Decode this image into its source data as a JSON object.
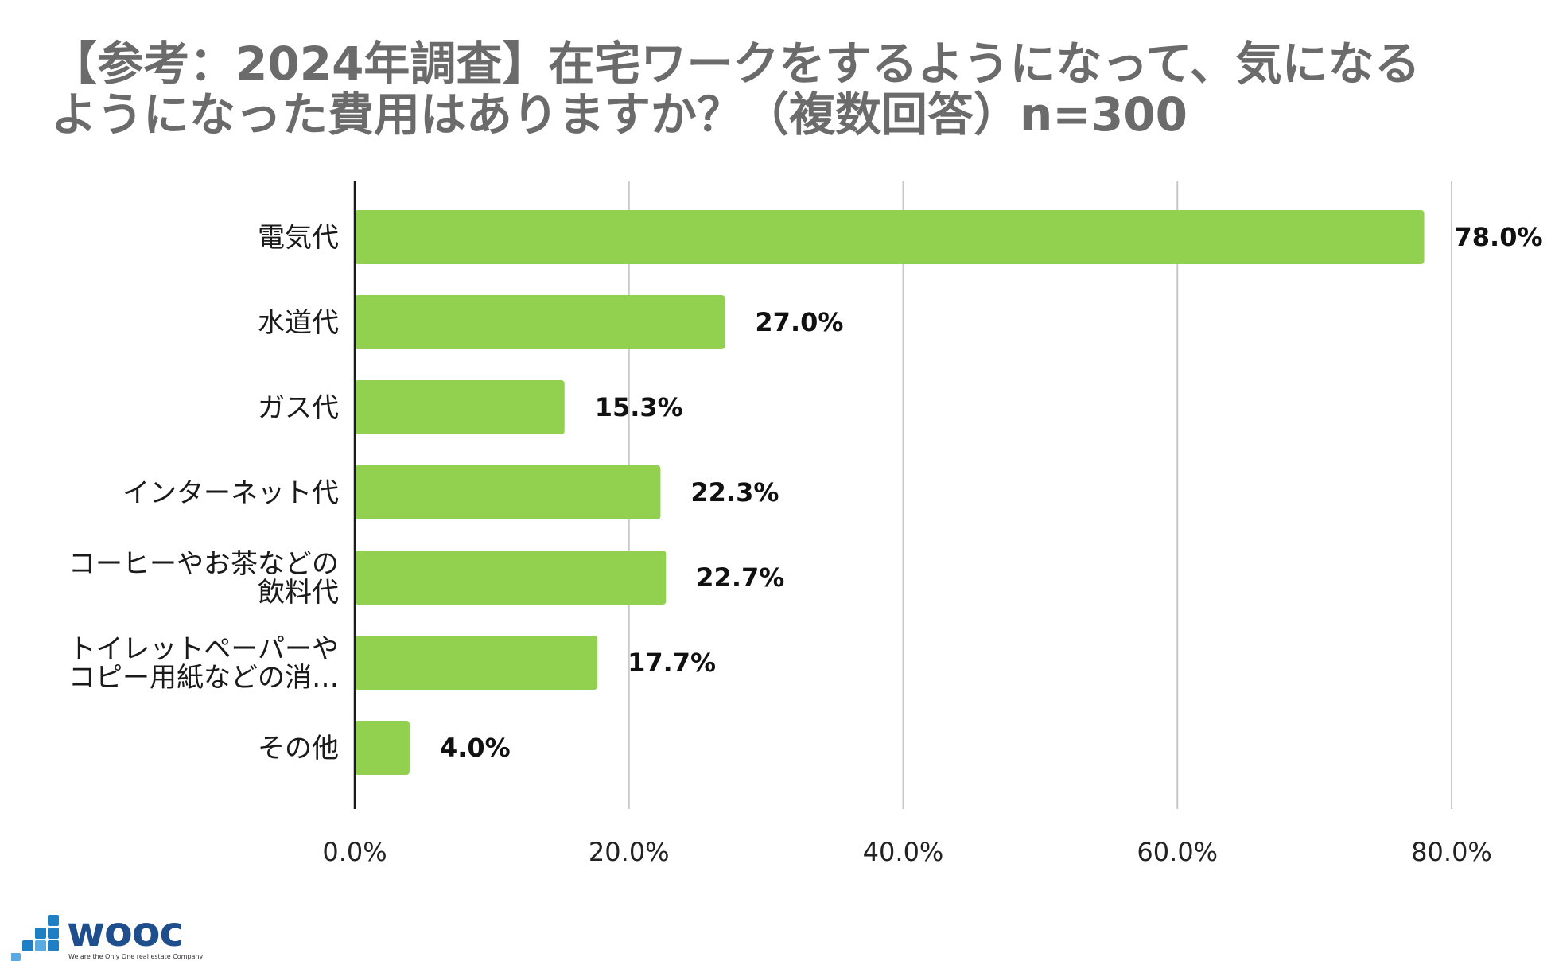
{
  "chart_data": {
    "type": "bar",
    "orientation": "horizontal",
    "title_lines": [
      "【参考：2024年調査】在宅ワークをするようになって、気になる",
      "ようになった費用はありますか？（複数回答）n=300"
    ],
    "categories": [
      [
        "電気代"
      ],
      [
        "水道代"
      ],
      [
        "ガス代"
      ],
      [
        "インターネット代"
      ],
      [
        "コーヒーやお茶などの",
        "飲料代"
      ],
      [
        "トイレットペーパーや",
        "コピー用紙などの消…"
      ],
      [
        "その他"
      ]
    ],
    "values": [
      78.0,
      27.0,
      15.3,
      22.3,
      22.7,
      17.7,
      4.0
    ],
    "value_labels": [
      "78.0%",
      "27.0%",
      "15.3%",
      "22.3%",
      "22.7%",
      "17.7%",
      "4.0%"
    ],
    "xlim": [
      0,
      80
    ],
    "x_ticks": [
      0,
      20,
      40,
      60,
      80
    ],
    "x_tick_labels": [
      "0.0%",
      "20.0%",
      "40.0%",
      "60.0%",
      "80.0%"
    ],
    "grid": true,
    "legend": "none",
    "bar_color": "#92d050",
    "grid_color": "#c8c8c8"
  },
  "logo": {
    "name": "wooc",
    "tagline": "We are the Only One real estate Company",
    "color": "#1f4e8c"
  }
}
